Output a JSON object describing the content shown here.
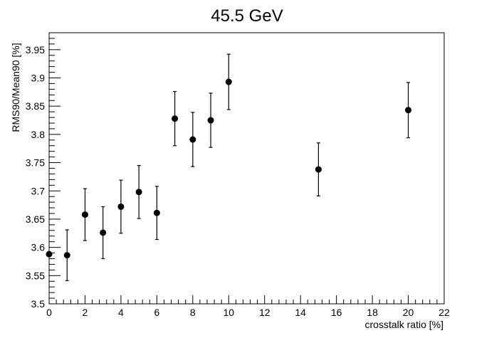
{
  "chart_data": {
    "type": "scatter",
    "title": "45.5 GeV",
    "xlabel": "crosstalk ratio [%]",
    "ylabel": "RMS90/Mean90 [%]",
    "xlim": [
      0,
      22
    ],
    "ylim": [
      3.5,
      3.98
    ],
    "x_ticks": [
      "0",
      "2",
      "4",
      "6",
      "8",
      "10",
      "12",
      "14",
      "16",
      "18",
      "20",
      "22"
    ],
    "y_ticks": [
      "3.5",
      "3.55",
      "3.6",
      "3.65",
      "3.7",
      "3.75",
      "3.8",
      "3.85",
      "3.9",
      "3.95"
    ],
    "grid": false,
    "legend": "none",
    "marker_color": "#000000",
    "points": [
      {
        "x": 0,
        "y": 3.588,
        "err": 0.0
      },
      {
        "x": 1,
        "y": 3.586,
        "err": 0.045
      },
      {
        "x": 2,
        "y": 3.658,
        "err": 0.046
      },
      {
        "x": 3,
        "y": 3.626,
        "err": 0.046
      },
      {
        "x": 4,
        "y": 3.672,
        "err": 0.047
      },
      {
        "x": 5,
        "y": 3.698,
        "err": 0.047
      },
      {
        "x": 6,
        "y": 3.661,
        "err": 0.047
      },
      {
        "x": 7,
        "y": 3.828,
        "err": 0.048
      },
      {
        "x": 8,
        "y": 3.791,
        "err": 0.048
      },
      {
        "x": 9,
        "y": 3.825,
        "err": 0.048
      },
      {
        "x": 10,
        "y": 3.893,
        "err": 0.049
      },
      {
        "x": 15,
        "y": 3.738,
        "err": 0.047
      },
      {
        "x": 20,
        "y": 3.843,
        "err": 0.049
      }
    ]
  }
}
